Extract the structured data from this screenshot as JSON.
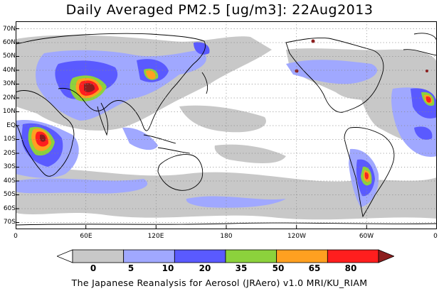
{
  "title": "Daily Averaged PM2.5 [ug/m3]: 22Aug2013",
  "lat_labels": [
    "70N",
    "60N",
    "50N",
    "40N",
    "30N",
    "20N",
    "10N",
    "EQ",
    "10S",
    "20S",
    "30S",
    "40S",
    "50S",
    "60S",
    "70S"
  ],
  "lon_labels": [
    "0",
    "60E",
    "120E",
    "180",
    "120W",
    "60W",
    "0"
  ],
  "colorbar": {
    "ticks": [
      "0",
      "5",
      "10",
      "20",
      "35",
      "50",
      "65",
      "80"
    ],
    "colors": [
      "#ffffff",
      "#c8c8c8",
      "#a0a8ff",
      "#5a5aff",
      "#8cd23c",
      "#ffa020",
      "#ff1e1e",
      "#8c1e1e"
    ]
  },
  "footer": "The Japanese Reanalysis for Aerosol (JRAero) v1.0 MRI/KU_RIAM"
}
